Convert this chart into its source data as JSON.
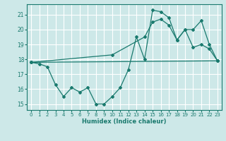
{
  "xlabel": "Humidex (Indice chaleur)",
  "bg_color": "#cde8e8",
  "grid_color": "#ffffff",
  "line_color": "#1a7a6e",
  "xlim": [
    -0.5,
    23.5
  ],
  "ylim": [
    14.6,
    21.7
  ],
  "yticks": [
    15,
    16,
    17,
    18,
    19,
    20,
    21
  ],
  "xticks": [
    0,
    1,
    2,
    3,
    4,
    5,
    6,
    7,
    8,
    9,
    10,
    11,
    12,
    13,
    14,
    15,
    16,
    17,
    18,
    19,
    20,
    21,
    22,
    23
  ],
  "line1_x": [
    0,
    1,
    2,
    3,
    4,
    5,
    6,
    7,
    8,
    9,
    10,
    11,
    12,
    13,
    14,
    15,
    16,
    17,
    18,
    19,
    20,
    21,
    22,
    23
  ],
  "line1_y": [
    17.8,
    17.7,
    17.5,
    16.3,
    15.5,
    16.1,
    15.8,
    16.1,
    15.0,
    15.0,
    15.5,
    16.1,
    17.3,
    19.5,
    18.0,
    21.3,
    21.2,
    20.8,
    19.3,
    20.0,
    18.8,
    19.0,
    18.7,
    17.9
  ],
  "line2_x": [
    0,
    23
  ],
  "line2_y": [
    17.8,
    17.9
  ],
  "line3_x": [
    0,
    10,
    14,
    15,
    16,
    17,
    18,
    19,
    20,
    21,
    22,
    23
  ],
  "line3_y": [
    17.8,
    18.3,
    19.5,
    20.5,
    20.7,
    20.3,
    19.3,
    20.0,
    20.0,
    20.6,
    19.0,
    17.9
  ]
}
